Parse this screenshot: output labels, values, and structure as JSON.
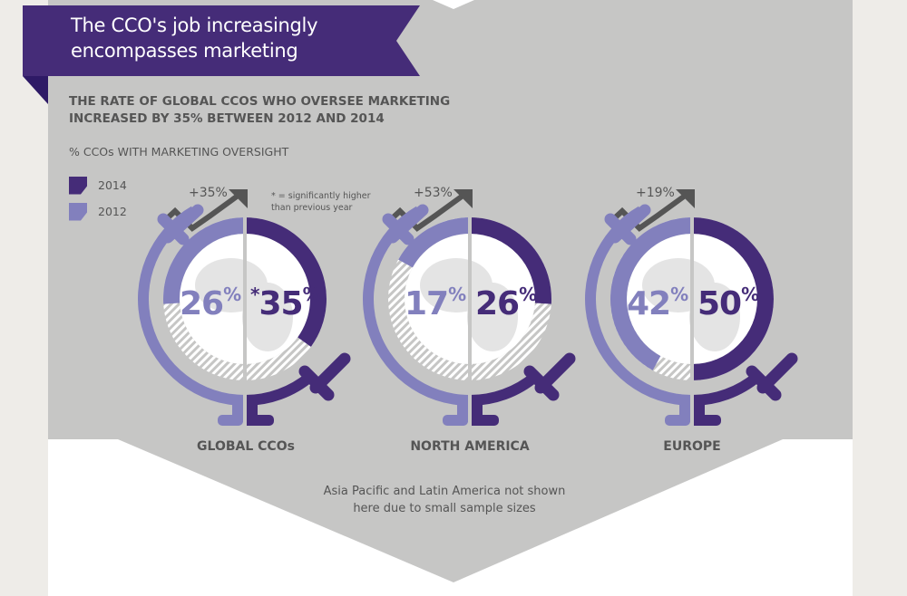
{
  "header": {
    "title_line1": "The CCO's job increasingly",
    "title_line2": "encompasses marketing",
    "subtitle_line1": "THE RATE OF GLOBAL CCOS WHO OVERSEE MARKETING",
    "subtitle_line2": "INCREASED BY 35% BETWEEN 2012 AND 2014"
  },
  "measure_label": "% CCOs WITH MARKETING OVERSIGHT",
  "legend": [
    {
      "label": "2014",
      "color": "#452c78"
    },
    {
      "label": "2012",
      "color": "#8280bd"
    }
  ],
  "footnote_line1": "* = significantly higher",
  "footnote_line2": "than previous year",
  "note_line1": "Asia Pacific and Latin America not shown",
  "note_line2": "here due to small sample sizes",
  "colors": {
    "dark": "#452c78",
    "light": "#8280bd",
    "gray_bg": "#c6c6c5",
    "text": "#555555",
    "side": "#eeece8",
    "banner_fold": "#2e1a66",
    "arrow": "#555555"
  },
  "globes": [
    {
      "region": "GLOBAL CCOs",
      "change": "+35%",
      "v2012": "26",
      "v2014": "35",
      "v2014_prefix": "*",
      "unit": "%"
    },
    {
      "region": "NORTH AMERICA",
      "change": "+53%",
      "v2012": "17",
      "v2014": "26",
      "v2014_prefix": "",
      "unit": "%"
    },
    {
      "region": "EUROPE",
      "change": "+19%",
      "v2012": "42",
      "v2014": "50",
      "v2014_prefix": "",
      "unit": "%"
    }
  ],
  "chart_data": {
    "type": "bar",
    "title": "The CCO's job increasingly encompasses marketing",
    "subtitle": "THE RATE OF GLOBAL CCOS WHO OVERSEE MARKETING INCREASED BY 35% BETWEEN 2012 AND 2014",
    "ylabel": "% CCOs WITH MARKETING OVERSIGHT",
    "categories": [
      "GLOBAL CCOs",
      "NORTH AMERICA",
      "EUROPE"
    ],
    "series": [
      {
        "name": "2012",
        "values": [
          26,
          17,
          42
        ]
      },
      {
        "name": "2014",
        "values": [
          35,
          26,
          50
        ]
      }
    ],
    "changes": [
      "+35%",
      "+53%",
      "+19%"
    ],
    "significant_2014": [
      true,
      false,
      false
    ],
    "annotations": [
      "* = significantly higher than previous year",
      "Asia Pacific and Latin America not shown here due to small sample sizes"
    ],
    "legend_position": "top-left",
    "arc_scale_max": 50
  }
}
